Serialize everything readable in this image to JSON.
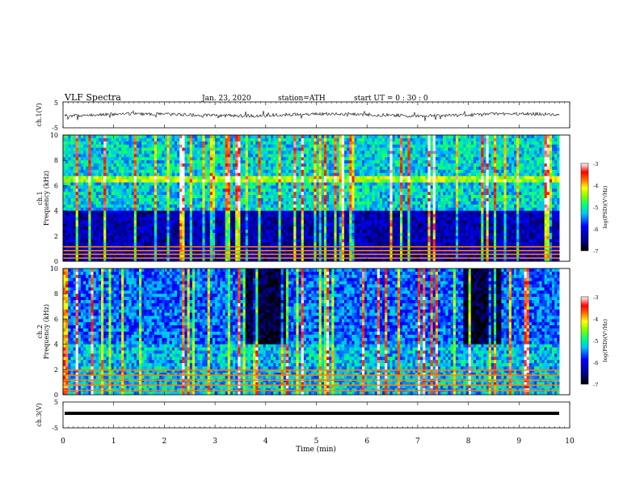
{
  "header": {
    "title": "VLF  Spectra",
    "date": "Jan. 23, 2020",
    "station": "station=ATH",
    "start": "start  UT  =   0 : 30 : 0"
  },
  "chart_data": [
    {
      "type": "line",
      "panel": "ch1-waveform",
      "ylabel": "ch.1(V)",
      "ylim": [
        -5,
        5
      ],
      "yticks": [
        "5",
        "-5"
      ],
      "xlim": [
        0,
        10
      ],
      "series": [
        {
          "description": "noisy waveform around ~0 V",
          "amplitude_range": [
            -1,
            1
          ]
        }
      ]
    },
    {
      "type": "heatmap",
      "panel": "ch1-spectrogram",
      "ylabel": "ch.1\nFrequency  (kHz)",
      "ylabel_line1": "ch.1",
      "ylabel_line2": "Frequency  (kHz)",
      "ylim": [
        0,
        10
      ],
      "yticks": [
        "0",
        "2",
        "4",
        "6",
        "8",
        "10"
      ],
      "xlim": [
        0,
        9.8
      ],
      "colorbar": {
        "label": "log(PSD)(V²/Hz)",
        "range": [
          -7,
          -3
        ],
        "ticks": [
          "-3",
          "-4",
          "-5",
          "-6",
          "-7"
        ]
      },
      "features": {
        "background_below_4kHz": -6.3,
        "background_above_4kHz": -5.2,
        "bright_band_kHz": [
          6.5,
          6.7
        ],
        "low_freq_bands": [
          0.3,
          0.6,
          0.9,
          1.2
        ],
        "sferics_vertical_lines": "many, across full time span"
      }
    },
    {
      "type": "heatmap",
      "panel": "ch2-spectrogram",
      "ylabel_line1": "ch.2",
      "ylabel_line2": "Frequency  (kHz)",
      "ylim": [
        0,
        10
      ],
      "yticks": [
        "0",
        "2",
        "4",
        "6",
        "8",
        "10"
      ],
      "xlim": [
        0,
        9.8
      ],
      "colorbar": {
        "label": "log(PSD)(V²/Hz)",
        "range": [
          -7,
          -3
        ],
        "ticks": [
          "-3",
          "-4",
          "-5",
          "-6",
          "-7"
        ]
      },
      "features": {
        "background_below_4kHz": -5.3,
        "background_above_4kHz": -5.6,
        "dark_gaps_minutes": [
          [
            3.6,
            4.4
          ],
          [
            7.9,
            8.6
          ]
        ],
        "low_freq_bands": [
          0.4,
          0.8,
          1.2,
          1.6,
          2.0
        ]
      }
    },
    {
      "type": "line",
      "panel": "ch3-waveform",
      "ylabel": "ch.3(V)",
      "ylim": [
        -5,
        5
      ],
      "yticks": [
        "5",
        "-5"
      ],
      "xlim": [
        0,
        10
      ],
      "series": [
        {
          "description": "flat thick line",
          "level": 1.3
        }
      ]
    }
  ],
  "x_axis": {
    "label": "Time  (min)",
    "ticks": [
      "0",
      "1",
      "2",
      "3",
      "4",
      "5",
      "6",
      "7",
      "8",
      "9",
      "10"
    ]
  },
  "colormap": [
    "#000080",
    "#0000ff",
    "#00a0ff",
    "#00ffff",
    "#40ff80",
    "#80ff00",
    "#ffff00",
    "#ff8000",
    "#ff0000",
    "#ffffff"
  ]
}
